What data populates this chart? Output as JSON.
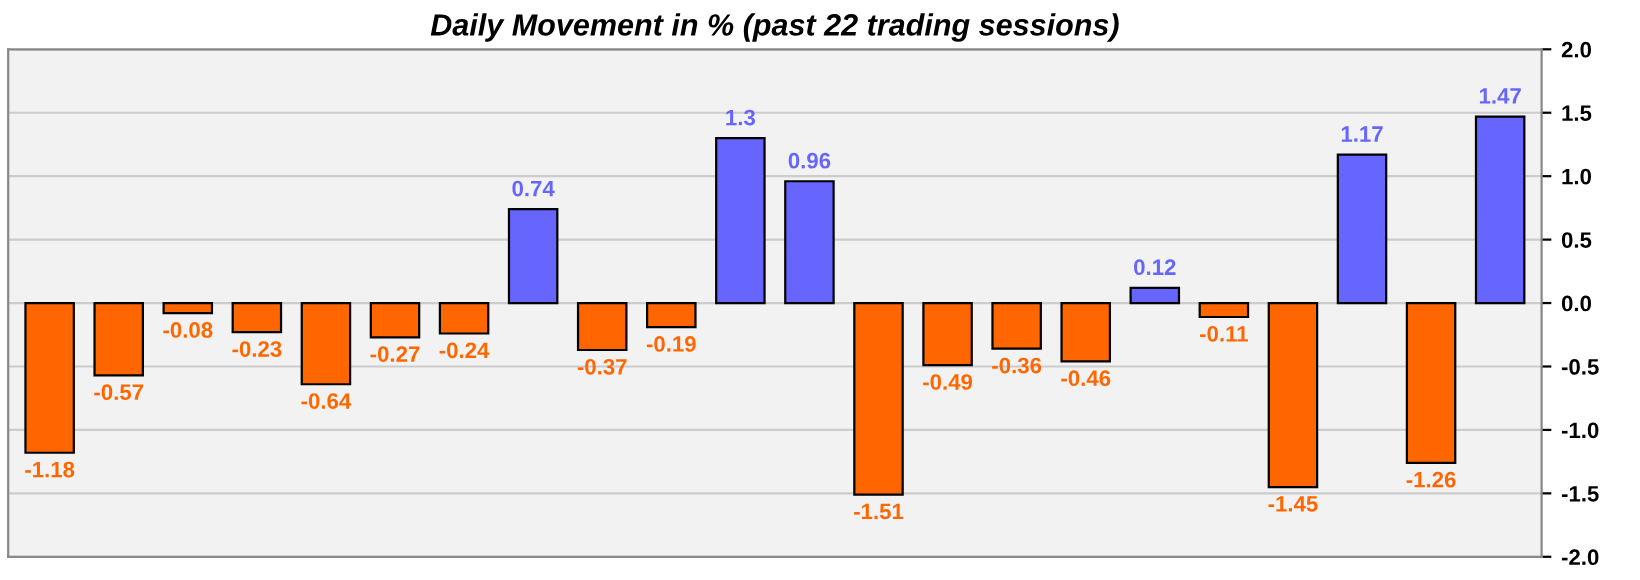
{
  "chart_data": {
    "type": "bar",
    "title": "Daily Movement in % (past 22 trading sessions)",
    "categories": [
      null,
      null,
      null,
      null,
      null,
      null,
      null,
      null,
      null,
      null,
      null,
      null,
      null,
      null,
      null,
      null,
      null,
      null,
      null,
      null,
      null,
      null
    ],
    "values": [
      -1.18,
      -0.57,
      -0.08,
      -0.23,
      -0.64,
      -0.27,
      -0.24,
      0.74,
      -0.37,
      -0.19,
      1.3,
      0.96,
      -1.51,
      -0.49,
      -0.36,
      -0.46,
      0.12,
      -0.11,
      -1.45,
      1.17,
      -1.26,
      1.47
    ],
    "colors": [
      "#ff6600",
      "#ff6600",
      "#ff6600",
      "#ff6600",
      "#ff6600",
      "#ff6600",
      "#ff6600",
      "#6666ff",
      "#ff6600",
      "#ff6600",
      "#6666ff",
      "#6666ff",
      "#ff6600",
      "#ff6600",
      "#ff6600",
      "#ff6600",
      "#6666ff",
      "#ff6600",
      "#ff6600",
      "#6666ff",
      "#ff6600",
      "#6666ff"
    ],
    "ylim": [
      -2.0,
      2.0
    ],
    "yticks": [
      {
        "value": -2.0,
        "label": "-2.0"
      },
      {
        "value": -1.5,
        "label": "-1.5"
      },
      {
        "value": -1.0,
        "label": "-1.0"
      },
      {
        "value": -0.5,
        "label": "-0.5"
      },
      {
        "value": 0.0,
        "label": "0.0"
      },
      {
        "value": 0.5,
        "label": "0.5"
      },
      {
        "value": 1.0,
        "label": "1.0"
      },
      {
        "value": 1.5,
        "label": "1.5"
      },
      {
        "value": 2.0,
        "label": "2.0"
      }
    ],
    "grid": "y",
    "data_labels": true,
    "legend": false
  }
}
